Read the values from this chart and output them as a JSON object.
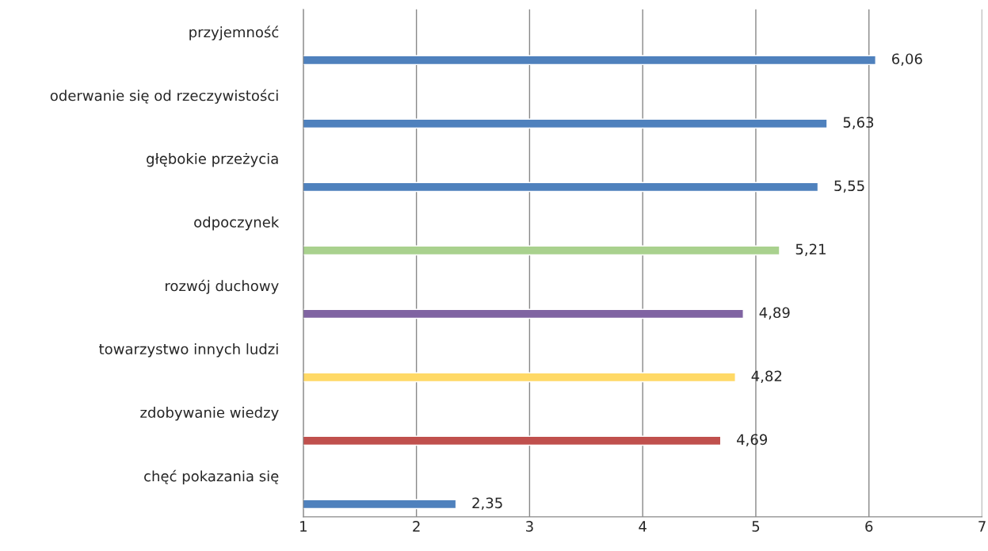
{
  "chart_data": {
    "type": "bar",
    "orientation": "horizontal",
    "categories": [
      "przyjemność",
      "oderwanie się od rzeczywistości",
      "głębokie przeżycia",
      "odpoczynek",
      "rozwój duchowy",
      "towarzystwo innych ludzi",
      "zdobywanie wiedzy",
      "chęć pokazania się"
    ],
    "values": [
      6.06,
      5.63,
      5.55,
      5.21,
      4.89,
      4.82,
      4.69,
      2.35
    ],
    "colors": [
      "#4f81bd",
      "#4f81bd",
      "#4f81bd",
      "#a9d18e",
      "#8064a2",
      "#ffd966",
      "#c0504d",
      "#4f81bd"
    ],
    "value_labels": [
      "6,06",
      "5,63",
      "5,55",
      "5,21",
      "4,89",
      "4,82",
      "4,69",
      "2,35"
    ],
    "xlim": [
      1,
      7
    ],
    "xticks": [
      1,
      2,
      3,
      4,
      5,
      6,
      7
    ],
    "grid": "x",
    "legend": false
  }
}
